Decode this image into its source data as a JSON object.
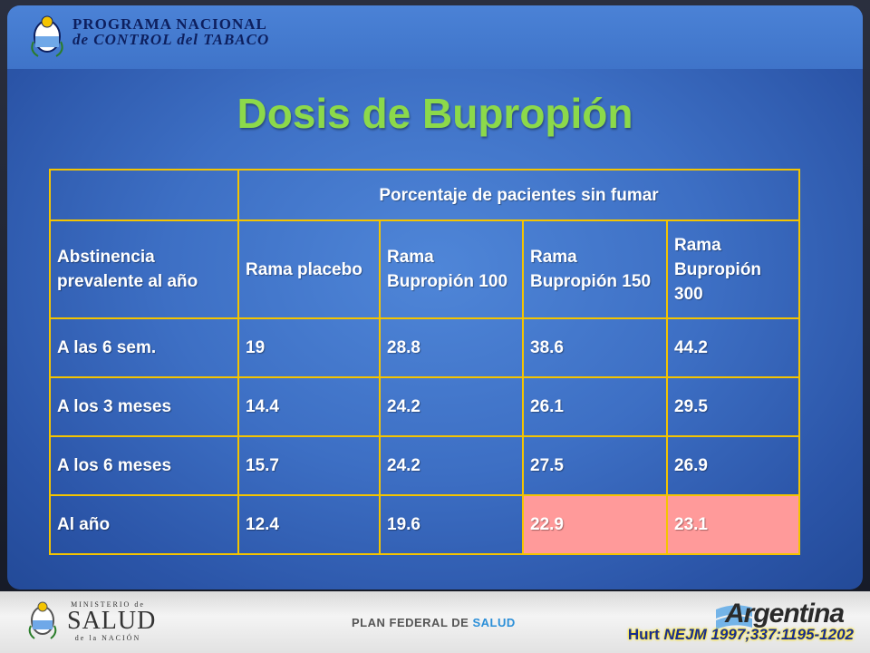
{
  "header": {
    "program_line1": "PROGRAMA NACIONAL",
    "program_line2": "de CONTROL del TABACO"
  },
  "slide": {
    "title": "Dosis de Bupropión"
  },
  "table": {
    "group_header": "Porcentaje de pacientes sin fumar",
    "columns": [
      "Abstinencia prevalente al año",
      "Rama placebo",
      "Rama Bupropión 100",
      "Rama Bupropión 150",
      "Rama Bupropión 300"
    ],
    "rows": [
      [
        "A las 6 sem.",
        "19",
        "28.8",
        "38.6",
        "44.2"
      ],
      [
        "A los 3 meses",
        "14.4",
        "24.2",
        "26.1",
        "29.5"
      ],
      [
        "A los 6 meses",
        "15.7",
        "24.2",
        "27.5",
        "26.9"
      ],
      [
        "Al año",
        "12.4",
        "19.6",
        "22.9",
        "23.1"
      ]
    ],
    "highlight_color": "#ff9a9a"
  },
  "footer": {
    "ministerio_top": "MINISTERIO de",
    "ministerio_main": "SALUD",
    "ministerio_bottom": "de la NACIÓN",
    "plan_prefix": "PLAN FEDERAL DE ",
    "plan_salud": "SALUD",
    "argentina": "Argentina"
  },
  "citation": {
    "author": "Hurt ",
    "journal": "NEJM",
    "ref": "  1997;337:1195-1202"
  },
  "colors": {
    "title": "#8cd94a",
    "table_border": "#f4c400",
    "background": "#3d6fc4"
  }
}
